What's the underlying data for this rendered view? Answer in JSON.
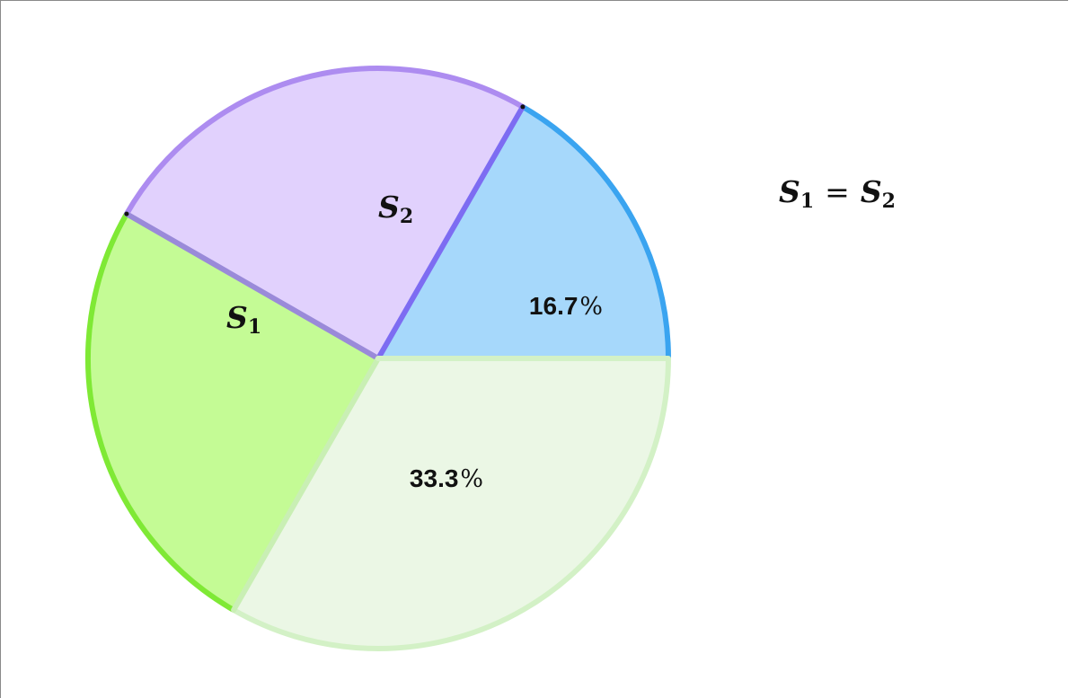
{
  "chart_data": {
    "type": "pie",
    "slices": [
      {
        "key": "blue",
        "label": "16.7",
        "unit": "%",
        "value": 16.7,
        "fill": "#a6d8fb",
        "stroke": "#3aa4f0"
      },
      {
        "key": "purple",
        "label_main": "S",
        "label_sub": "2",
        "value": 25,
        "fill": "#e1d1fd",
        "stroke": "#ad8cf0"
      },
      {
        "key": "green",
        "label_main": "S",
        "label_sub": "1",
        "value": 25,
        "fill": "#c4fb95",
        "stroke": "#7fe935"
      },
      {
        "key": "pale",
        "label": "33.3",
        "unit": "%",
        "value": 33.3,
        "fill": "#ebf7e5",
        "stroke": "#d3f1c6"
      }
    ],
    "start_angle_deg": 0,
    "direction": "counterclockwise"
  },
  "equation": {
    "lhs_main": "S",
    "lhs_sub": "1",
    "operator": "=",
    "rhs_main": "S",
    "rhs_sub": "2"
  }
}
